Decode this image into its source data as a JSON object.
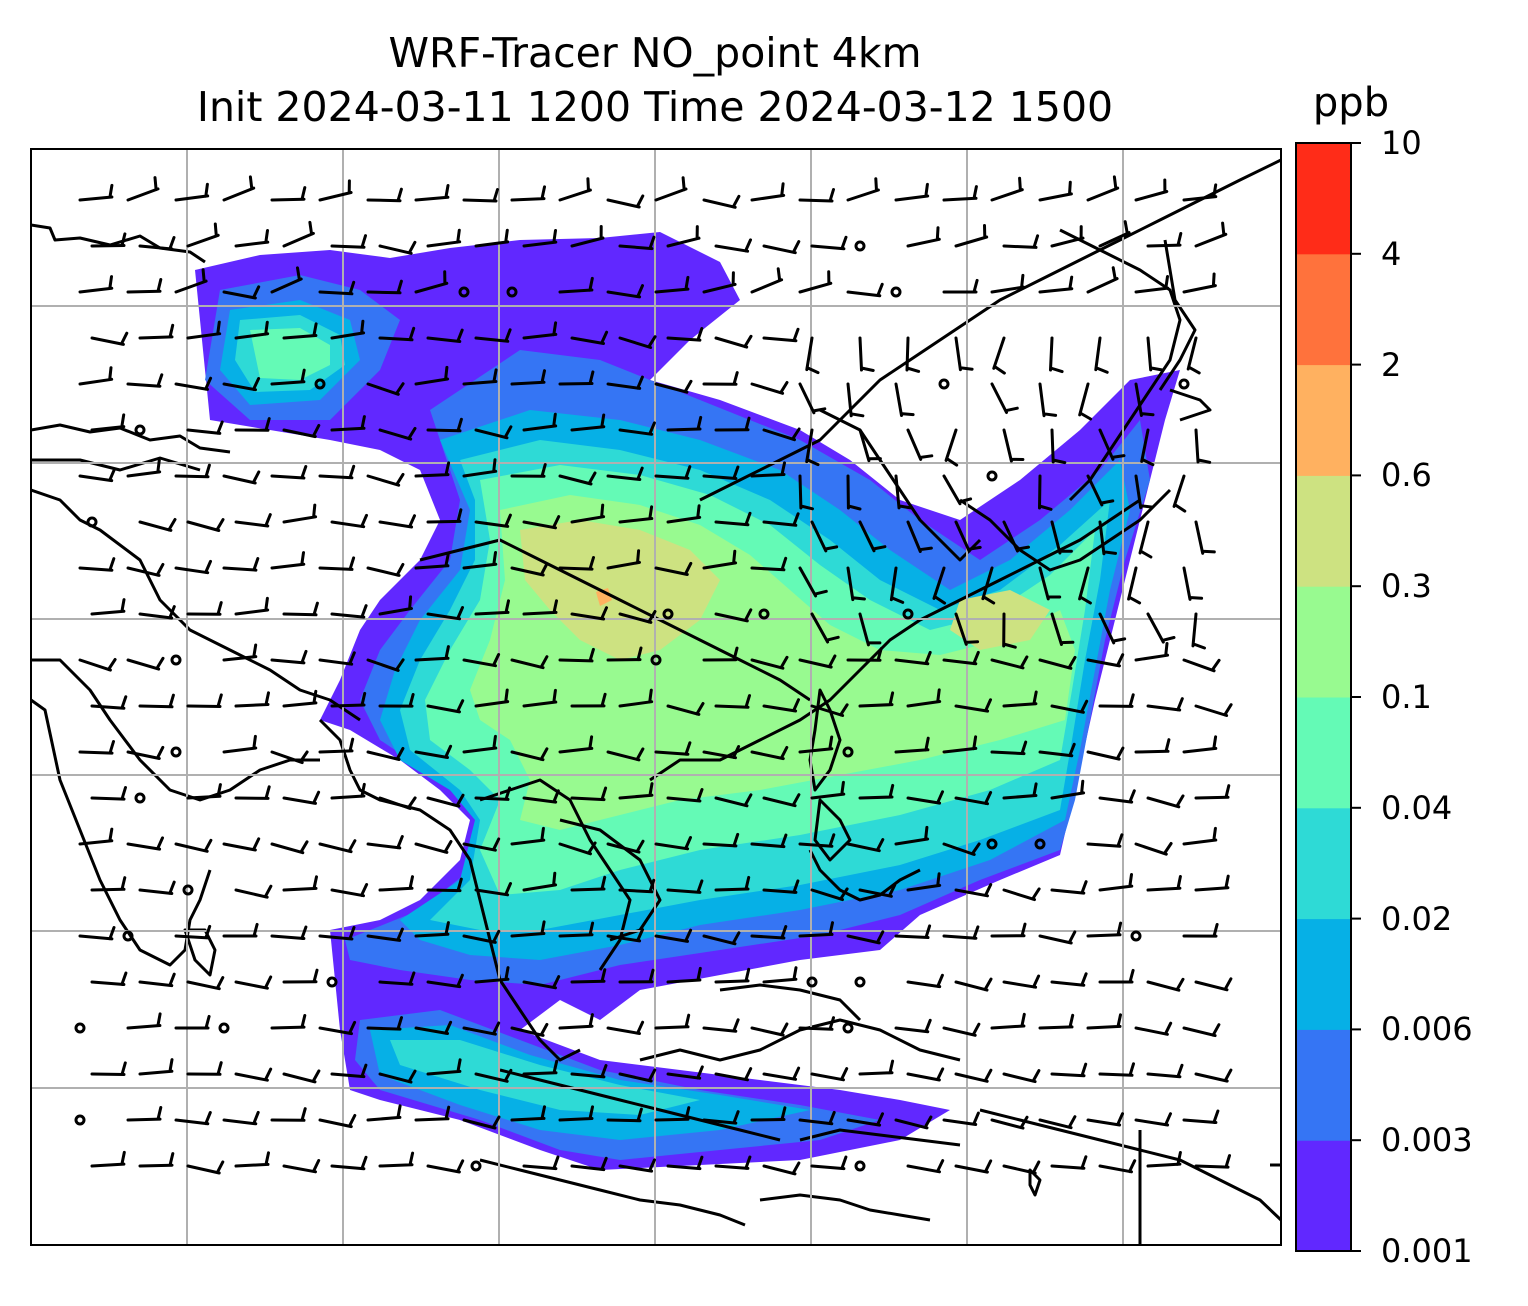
{
  "title": {
    "line1": "WRF-Tracer NO_point 4km",
    "line2": "Init 2024-03-11 1200 Time 2024-03-12 1500"
  },
  "colorbar": {
    "unit": "ppb",
    "levels": [
      "0.001",
      "0.003",
      "0.006",
      "0.02",
      "0.04",
      "0.1",
      "0.3",
      "0.6",
      "2",
      "4",
      "10"
    ],
    "colors": [
      "#6128ff",
      "#3575f4",
      "#06b0e6",
      "#2edad6",
      "#64fab6",
      "#98fa90",
      "#cde281",
      "#ffb160",
      "#ff723c",
      "#ff2c18"
    ]
  },
  "map": {
    "grid": true,
    "wind_barbs": true,
    "coastlines": true
  }
}
